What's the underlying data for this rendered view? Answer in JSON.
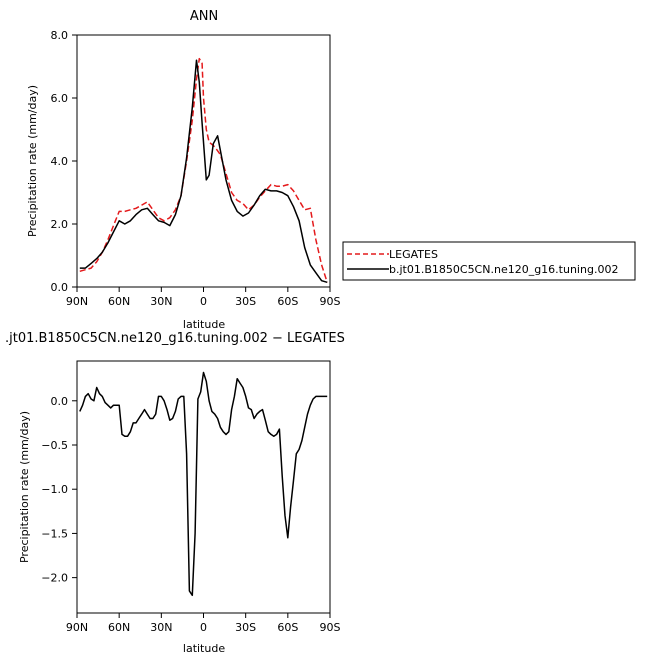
{
  "chart_data": [
    {
      "type": "line",
      "title": "ANN",
      "xlabel": "latitude",
      "ylabel": "Precipitation rate  (mm/day)",
      "xlim": [
        90,
        -90
      ],
      "ylim": [
        0,
        8
      ],
      "x_tick_values": [
        90,
        60,
        30,
        0,
        -30,
        -60,
        -90
      ],
      "x_ticks": [
        "90N",
        "60N",
        "30N",
        "0",
        "30S",
        "60S",
        "90S"
      ],
      "y_tick_values": [
        0,
        2,
        4,
        6,
        8
      ],
      "y_ticks": [
        "0.0",
        "2.0",
        "4.0",
        "6.0",
        "8.0"
      ],
      "grid": false,
      "legend_position": "right",
      "series": [
        {
          "name": "LEGATES",
          "color": "#e41a1c",
          "dash": "dashed",
          "x": [
            88,
            84,
            80,
            76,
            72,
            68,
            64,
            60,
            56,
            52,
            48,
            44,
            40,
            36,
            32,
            28,
            24,
            20,
            16,
            12,
            8,
            5,
            3,
            1,
            0,
            -2,
            -4,
            -8,
            -12,
            -16,
            -20,
            -24,
            -28,
            -32,
            -36,
            -40,
            -44,
            -48,
            -52,
            -56,
            -60,
            -64,
            -68,
            -72,
            -76,
            -80,
            -84,
            -88
          ],
          "y": [
            0.5,
            0.55,
            0.6,
            0.8,
            1.1,
            1.5,
            1.95,
            2.4,
            2.4,
            2.45,
            2.5,
            2.6,
            2.7,
            2.45,
            2.2,
            2.1,
            2.2,
            2.45,
            2.9,
            4.0,
            5.3,
            6.6,
            7.25,
            7.1,
            6.0,
            5.0,
            4.6,
            4.45,
            4.2,
            3.6,
            3.0,
            2.75,
            2.65,
            2.45,
            2.6,
            2.85,
            3.05,
            3.25,
            3.2,
            3.2,
            3.25,
            3.05,
            2.75,
            2.45,
            2.5,
            1.5,
            0.7,
            0.15
          ]
        },
        {
          "name": "b.jt01.B1850C5CN.ne120_g16.tuning.002",
          "color": "#000000",
          "dash": "solid",
          "x": [
            88,
            84,
            80,
            76,
            72,
            68,
            64,
            60,
            56,
            52,
            48,
            44,
            40,
            36,
            32,
            28,
            24,
            20,
            16,
            12,
            8,
            5,
            3,
            1,
            -2,
            -4,
            -7,
            -10,
            -13,
            -16,
            -20,
            -24,
            -28,
            -32,
            -36,
            -40,
            -44,
            -48,
            -52,
            -56,
            -60,
            -64,
            -68,
            -72,
            -76,
            -80,
            -84,
            -88
          ],
          "y": [
            0.6,
            0.6,
            0.75,
            0.9,
            1.1,
            1.4,
            1.75,
            2.1,
            2.0,
            2.1,
            2.3,
            2.45,
            2.5,
            2.3,
            2.1,
            2.05,
            1.95,
            2.3,
            2.9,
            4.1,
            5.7,
            7.2,
            6.5,
            5.2,
            3.4,
            3.55,
            4.55,
            4.8,
            4.1,
            3.4,
            2.75,
            2.4,
            2.25,
            2.35,
            2.6,
            2.9,
            3.1,
            3.05,
            3.05,
            3.0,
            2.9,
            2.55,
            2.1,
            1.25,
            0.7,
            0.45,
            0.2,
            0.15
          ]
        }
      ]
    },
    {
      "type": "line",
      "title": ".jt01.B1850C5CN.ne120_g16.tuning.002  −  LEGATES",
      "xlabel": "latitude",
      "ylabel": "Precipitation rate  (mm/day)",
      "xlim": [
        90,
        -90
      ],
      "ylim": [
        -2.4,
        0.45
      ],
      "x_tick_values": [
        90,
        60,
        30,
        0,
        -30,
        -60,
        -90
      ],
      "x_ticks": [
        "90N",
        "60N",
        "30N",
        "0",
        "30S",
        "60S",
        "90S"
      ],
      "y_tick_values": [
        0,
        -0.5,
        -1,
        -1.5,
        -2
      ],
      "y_ticks": [
        "0.0",
        "−0.5",
        "−1.0",
        "−1.5",
        "−2.0"
      ],
      "grid": false,
      "series": [
        {
          "name": "",
          "color": "#000000",
          "dash": "solid",
          "x": [
            88,
            86,
            84,
            82,
            80,
            78,
            76,
            74,
            72,
            70,
            68,
            66,
            64,
            62,
            60,
            58,
            56,
            54,
            52,
            50,
            48,
            46,
            44,
            42,
            40,
            38,
            36,
            34,
            32,
            30,
            28,
            26,
            24,
            22,
            20,
            18,
            16,
            14,
            12,
            10,
            8,
            6,
            4,
            2,
            0,
            -2,
            -4,
            -6,
            -8,
            -10,
            -12,
            -14,
            -16,
            -18,
            -20,
            -22,
            -24,
            -26,
            -28,
            -30,
            -32,
            -34,
            -36,
            -38,
            -40,
            -42,
            -44,
            -46,
            -48,
            -50,
            -52,
            -54,
            -56,
            -58,
            -60,
            -62,
            -64,
            -66,
            -68,
            -70,
            -72,
            -74,
            -76,
            -78,
            -80,
            -82,
            -84,
            -86,
            -88
          ],
          "y": [
            -0.12,
            -0.05,
            0.05,
            0.08,
            0.02,
            0.0,
            0.15,
            0.08,
            0.05,
            -0.02,
            -0.05,
            -0.08,
            -0.05,
            -0.05,
            -0.05,
            -0.38,
            -0.4,
            -0.4,
            -0.35,
            -0.25,
            -0.25,
            -0.2,
            -0.15,
            -0.1,
            -0.15,
            -0.2,
            -0.2,
            -0.15,
            0.05,
            0.05,
            0.0,
            -0.1,
            -0.22,
            -0.2,
            -0.12,
            0.02,
            0.05,
            0.05,
            -0.6,
            -2.15,
            -2.2,
            -1.5,
            0.02,
            0.1,
            0.32,
            0.22,
            0.0,
            -0.12,
            -0.15,
            -0.2,
            -0.3,
            -0.35,
            -0.38,
            -0.35,
            -0.1,
            0.05,
            0.25,
            0.2,
            0.15,
            0.05,
            -0.08,
            -0.1,
            -0.2,
            -0.15,
            -0.12,
            -0.1,
            -0.22,
            -0.35,
            -0.38,
            -0.4,
            -0.38,
            -0.32,
            -0.85,
            -1.3,
            -1.55,
            -1.2,
            -0.9,
            -0.6,
            -0.55,
            -0.45,
            -0.3,
            -0.15,
            -0.05,
            0.02,
            0.05,
            0.05,
            0.05,
            0.05,
            0.05
          ]
        }
      ]
    }
  ]
}
